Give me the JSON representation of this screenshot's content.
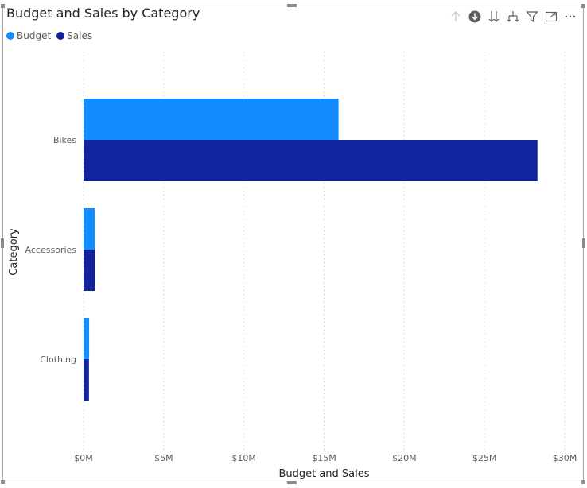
{
  "visual": {
    "title": "Budget and Sales by Category"
  },
  "legend": {
    "items": [
      {
        "label": "Budget",
        "color": "#118DFF"
      },
      {
        "label": "Sales",
        "color": "#12239E"
      }
    ]
  },
  "header_icons": [
    "arrow-up-icon",
    "drill-down-icon",
    "expand-all-icon",
    "expand-next-level-icon",
    "filter-icon",
    "focus-mode-icon",
    "more-options-icon"
  ],
  "chart_data": {
    "type": "bar",
    "orientation": "horizontal",
    "title": "Budget and Sales by Category",
    "xlabel": "Budget and Sales",
    "ylabel": "Category",
    "categories": [
      "Bikes",
      "Accessories",
      "Clothing"
    ],
    "series": [
      {
        "name": "Budget",
        "color": "#118DFF",
        "values": [
          15.9,
          0.7,
          0.35
        ]
      },
      {
        "name": "Sales",
        "color": "#12239E",
        "values": [
          28.3,
          0.7,
          0.34
        ]
      }
    ],
    "xlim": [
      0,
      30
    ],
    "x_ticks": [
      0,
      5,
      10,
      15,
      20,
      25,
      30
    ],
    "x_tick_labels": [
      "$0M",
      "$5M",
      "$10M",
      "$15M",
      "$20M",
      "$25M",
      "$30M"
    ],
    "grid": "vertical-dotted",
    "legend_position": "top-left"
  }
}
